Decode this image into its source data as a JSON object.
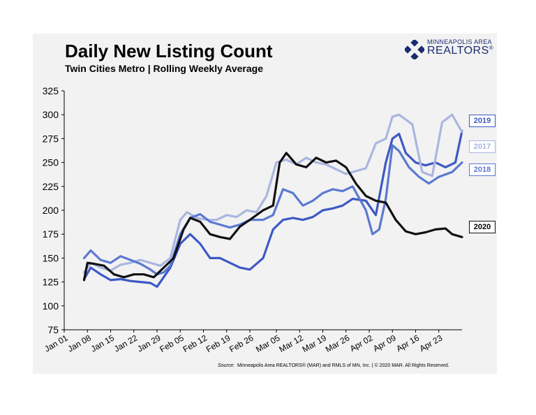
{
  "header": {
    "title": "Daily New Listing Count",
    "subtitle": "Twin Cities Metro  |  Rolling Weekly Average"
  },
  "logo": {
    "line1": "MINNEAPOLIS AREA",
    "line2": "REALTORS",
    "reg": "®"
  },
  "footer": {
    "source_label": "Source:",
    "source_text": "Minneapolis Area REALTORS® (MAR) and RMLS of MN, Inc.  |  © 2020 MAR. All Rights Reserved."
  },
  "chart_data": {
    "type": "line",
    "title": "Daily New Listing Count",
    "subtitle": "Twin Cities Metro  |  Rolling Weekly Average",
    "ylim": [
      75,
      325
    ],
    "yticks": [
      75,
      100,
      125,
      150,
      175,
      200,
      225,
      250,
      275,
      300,
      325
    ],
    "xlim": [
      "Jan 01",
      "Apr 30"
    ],
    "xticks": [
      "Jan 01",
      "Jan 08",
      "Jan 15",
      "Jan 22",
      "Jan 29",
      "Feb 05",
      "Feb 12",
      "Feb 19",
      "Feb 26",
      "Mar 05",
      "Mar 12",
      "Mar 19",
      "Mar 26",
      "Apr 02",
      "Apr 09",
      "Apr 16",
      "Apr 23"
    ],
    "grid": false,
    "legend": "right-end labels",
    "series": [
      {
        "name": "2019",
        "color": "#3d59c5",
        "dates": [
          "Jan 07",
          "Jan 09",
          "Jan 12",
          "Jan 15",
          "Jan 18",
          "Jan 21",
          "Jan 24",
          "Jan 27",
          "Jan 29",
          "Jan 31",
          "Feb 02",
          "Feb 05",
          "Feb 08",
          "Feb 11",
          "Feb 14",
          "Feb 17",
          "Feb 20",
          "Feb 23",
          "Feb 26",
          "Mar 01",
          "Mar 04",
          "Mar 07",
          "Mar 10",
          "Mar 13",
          "Mar 16",
          "Mar 19",
          "Mar 22",
          "Mar 25",
          "Mar 28",
          "Apr 01",
          "Apr 04",
          "Apr 07",
          "Apr 09",
          "Apr 11",
          "Apr 13",
          "Apr 16",
          "Apr 19",
          "Apr 22",
          "Apr 25",
          "Apr 28",
          "Apr 30"
        ],
        "values": [
          128,
          140,
          133,
          127,
          128,
          126,
          125,
          124,
          120,
          130,
          140,
          165,
          175,
          165,
          150,
          150,
          145,
          140,
          138,
          150,
          180,
          190,
          192,
          190,
          193,
          200,
          202,
          205,
          212,
          210,
          195,
          250,
          275,
          280,
          260,
          250,
          247,
          250,
          245,
          250,
          283
        ]
      },
      {
        "name": "2017",
        "color": "#aab6df",
        "dates": [
          "Jan 07",
          "Jan 09",
          "Jan 12",
          "Jan 15",
          "Jan 18",
          "Jan 21",
          "Jan 24",
          "Jan 27",
          "Jan 30",
          "Feb 02",
          "Feb 05",
          "Feb 07",
          "Feb 10",
          "Feb 13",
          "Feb 16",
          "Feb 19",
          "Feb 22",
          "Feb 25",
          "Feb 28",
          "Mar 02",
          "Mar 05",
          "Mar 08",
          "Mar 11",
          "Mar 14",
          "Mar 17",
          "Mar 20",
          "Mar 23",
          "Mar 26",
          "Mar 29",
          "Apr 01",
          "Apr 04",
          "Apr 07",
          "Apr 09",
          "Apr 11",
          "Apr 13",
          "Apr 15",
          "Apr 18",
          "Apr 21",
          "Apr 24",
          "Apr 27",
          "Apr 30"
        ],
        "values": [
          135,
          145,
          140,
          137,
          143,
          145,
          148,
          145,
          142,
          150,
          190,
          198,
          192,
          190,
          190,
          195,
          193,
          200,
          198,
          215,
          250,
          253,
          248,
          255,
          250,
          248,
          243,
          238,
          241,
          244,
          270,
          275,
          298,
          300,
          295,
          290,
          240,
          236,
          292,
          300,
          282
        ]
      },
      {
        "name": "2018",
        "color": "#5b79d1",
        "dates": [
          "Jan 07",
          "Jan 09",
          "Jan 12",
          "Jan 15",
          "Jan 18",
          "Jan 21",
          "Jan 24",
          "Jan 27",
          "Jan 29",
          "Jan 31",
          "Feb 02",
          "Feb 05",
          "Feb 08",
          "Feb 11",
          "Feb 14",
          "Feb 17",
          "Feb 20",
          "Feb 23",
          "Feb 26",
          "Mar 01",
          "Mar 04",
          "Mar 07",
          "Mar 10",
          "Mar 13",
          "Mar 16",
          "Mar 19",
          "Mar 22",
          "Mar 25",
          "Mar 28",
          "Apr 01",
          "Apr 03",
          "Apr 05",
          "Apr 07",
          "Apr 09",
          "Apr 11",
          "Apr 14",
          "Apr 17",
          "Apr 20",
          "Apr 23",
          "Apr 27",
          "Apr 30"
        ],
        "values": [
          150,
          158,
          148,
          145,
          152,
          148,
          144,
          138,
          133,
          135,
          142,
          175,
          192,
          196,
          188,
          185,
          182,
          185,
          190,
          190,
          195,
          222,
          218,
          205,
          210,
          218,
          222,
          220,
          225,
          200,
          175,
          180,
          212,
          268,
          262,
          245,
          235,
          228,
          235,
          240,
          250
        ]
      },
      {
        "name": "2020",
        "color": "#111111",
        "dates": [
          "Jan 07",
          "Jan 08",
          "Jan 10",
          "Jan 13",
          "Jan 16",
          "Jan 19",
          "Jan 22",
          "Jan 25",
          "Jan 28",
          "Jan 31",
          "Feb 03",
          "Feb 06",
          "Feb 08",
          "Feb 11",
          "Feb 14",
          "Feb 17",
          "Feb 20",
          "Feb 23",
          "Feb 26",
          "Mar 01",
          "Mar 04",
          "Mar 06",
          "Mar 08",
          "Mar 11",
          "Mar 14",
          "Mar 17",
          "Mar 20",
          "Mar 23",
          "Mar 26",
          "Mar 29",
          "Apr 01",
          "Apr 04",
          "Apr 07",
          "Apr 10",
          "Apr 13",
          "Apr 16",
          "Apr 19",
          "Apr 22",
          "Apr 25",
          "Apr 27",
          "Apr 30"
        ],
        "values": [
          127,
          145,
          144,
          142,
          133,
          130,
          133,
          133,
          130,
          140,
          150,
          180,
          192,
          188,
          175,
          172,
          170,
          183,
          190,
          200,
          205,
          250,
          260,
          248,
          245,
          255,
          250,
          252,
          245,
          228,
          215,
          210,
          208,
          190,
          178,
          175,
          177,
          180,
          181,
          175,
          172
        ]
      }
    ]
  }
}
